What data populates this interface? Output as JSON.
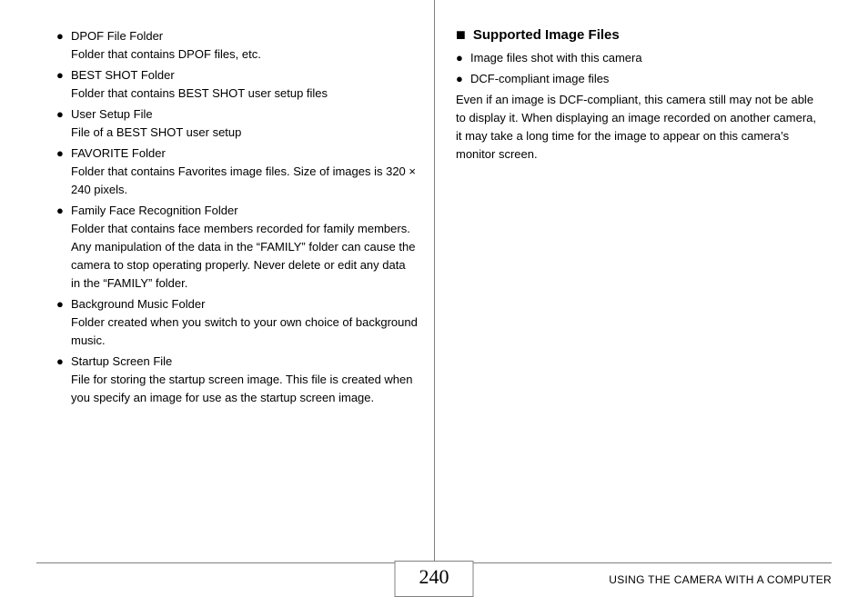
{
  "left": {
    "items": [
      {
        "name": "DPOF File Folder",
        "desc": "Folder that contains DPOF files, etc."
      },
      {
        "name": "BEST SHOT Folder",
        "desc": "Folder that contains BEST SHOT user setup files"
      },
      {
        "name": "User Setup File",
        "desc": "File of a BEST SHOT user setup"
      },
      {
        "name": "FAVORITE Folder",
        "desc": "Folder that contains Favorites image files. Size of images is 320 × 240 pixels."
      },
      {
        "name": "Family Face Recognition Folder",
        "desc": "Folder that contains face members recorded for family members. Any manipulation of the data in the “FAMILY” folder can cause the camera to stop operating properly. Never delete or edit any data in the “FAMILY” folder."
      },
      {
        "name": "Background Music Folder",
        "desc": "Folder created when you switch to your own choice of background music."
      },
      {
        "name": "Startup Screen File",
        "desc": "File for storing the startup screen image. This file is created when you specify an image for use as the startup screen image."
      }
    ]
  },
  "right": {
    "title": "Supported Image Files",
    "bullets": [
      "Image files shot with this camera",
      "DCF-compliant image files"
    ],
    "paragraph": "Even if an image is DCF-compliant, this camera still may not be able to display it. When displaying an image recorded on another camera, it may take a long time for the image to appear on this camera’s monitor screen."
  },
  "footer": {
    "page_number": "240",
    "section": "USING THE CAMERA WITH A COMPUTER"
  }
}
